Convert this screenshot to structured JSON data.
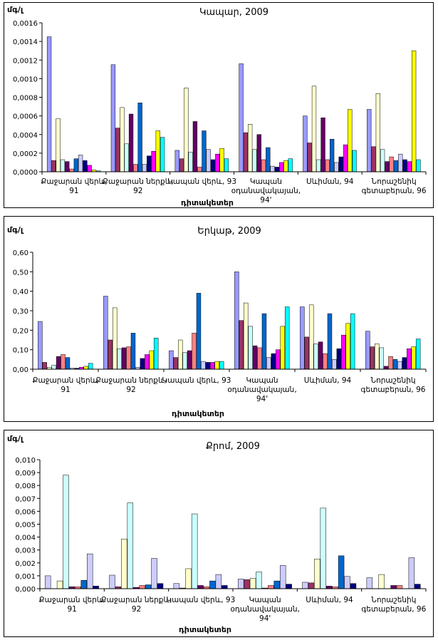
{
  "chart_data": [
    {
      "type": "bar",
      "title": "Կապար, 2009",
      "ylabel": "մգ/լ",
      "xlabel": "դիտակետեր",
      "ylim": [
        0,
        0.0016
      ],
      "y_ticks": [
        "0,0000",
        "0,0002",
        "0,0004",
        "0,0006",
        "0,0008",
        "0,0010",
        "0,0012",
        "0,0014",
        "0,0016"
      ],
      "grid": false,
      "legend": "none",
      "categories": [
        [
          "Քաջարան վերև,",
          "91"
        ],
        [
          "Քաջարան ներքև,",
          "92"
        ],
        [
          "Կապան վերև, 93",
          ""
        ],
        [
          "Կապան",
          "օդանավակայան,",
          "94'"
        ],
        [
          "Սևիման, 94",
          ""
        ],
        [
          "Նորաշենիկ",
          "գետաբերան, 96"
        ]
      ],
      "series_colors": [
        "#9999ff",
        "#993366",
        "#ffffcc",
        "#ccffff",
        "#660066",
        "#ff8080",
        "#0066cc",
        "#ccccff",
        "#000080",
        "#ff00ff",
        "#ffff00",
        "#00ffff"
      ],
      "series": [
        {
          "values": [
            0.00145,
            0.00115,
            0.00023,
            0.00116,
            0.0006,
            0.00067
          ]
        },
        {
          "values": [
            0.00012,
            0.00047,
            0.00014,
            0.00042,
            0.00031,
            0.00027
          ]
        },
        {
          "values": [
            0.00057,
            0.00069,
            0.0009,
            0.00051,
            0.00092,
            0.00084
          ]
        },
        {
          "values": [
            0.00013,
            0.0003,
            0.00021,
            0.00024,
            0.00013,
            0.00024
          ]
        },
        {
          "values": [
            0.00011,
            0.00062,
            0.00054,
            0.0004,
            0.00058,
            0.00011
          ]
        },
        {
          "values": [
            3e-05,
            8e-05,
            5e-05,
            0.00013,
            0.00013,
            0.00016
          ]
        },
        {
          "values": [
            0.00014,
            0.00074,
            0.00044,
            0.00026,
            0.00035,
            0.00012
          ]
        },
        {
          "values": [
            0.00018,
            8e-05,
            0.00024,
            6e-05,
            0.0001,
            0.00019
          ]
        },
        {
          "values": [
            0.00012,
            0.00017,
            0.00013,
            5e-05,
            0.00016,
            0.00013
          ]
        },
        {
          "values": [
            7e-05,
            0.00022,
            0.00019,
            0.0001,
            0.00029,
            0.00011
          ]
        },
        {
          "values": [
            2e-05,
            0.00044,
            0.00025,
            0.00012,
            0.00067,
            0.0013
          ]
        },
        {
          "values": [
            1e-05,
            0.00037,
            0.00014,
            0.00014,
            0.00023,
            0.00013
          ]
        }
      ]
    },
    {
      "type": "bar",
      "title": "Երկաթ, 2009",
      "ylabel": "մգ/լ",
      "xlabel": "դիտակետեր",
      "ylim": [
        0,
        0.6
      ],
      "y_ticks": [
        "0,00",
        "0,10",
        "0,20",
        "0,30",
        "0,40",
        "0,50",
        "0,60"
      ],
      "grid": false,
      "legend": "none",
      "categories": [
        [
          "Քաջարան վերև,",
          "91"
        ],
        [
          "Քաջարան ներքև,",
          "92"
        ],
        [
          "Կապան վերև, 93",
          ""
        ],
        [
          "Կապան",
          "օդանավակայան,",
          "94'"
        ],
        [
          "Սևիման, 94",
          ""
        ],
        [
          "Նորաշենիկ",
          "գետաբերան, 96"
        ]
      ],
      "series_colors": [
        "#9999ff",
        "#993366",
        "#ffffcc",
        "#ccffff",
        "#660066",
        "#ff8080",
        "#0066cc",
        "#ccccff",
        "#000080",
        "#ff00ff",
        "#ffff00",
        "#00ffff"
      ],
      "series": [
        {
          "values": [
            0.245,
            0.375,
            0.095,
            0.5,
            0.32,
            0.195
          ]
        },
        {
          "values": [
            0.035,
            0.15,
            0.06,
            0.25,
            0.165,
            0.115
          ]
        },
        {
          "values": [
            0.01,
            0.315,
            0.15,
            0.34,
            0.33,
            0.13
          ]
        },
        {
          "values": [
            0.02,
            0.105,
            0.085,
            0.22,
            0.13,
            0.11
          ]
        },
        {
          "values": [
            0.065,
            0.11,
            0.095,
            0.12,
            0.14,
            0.015
          ]
        },
        {
          "values": [
            0.075,
            0.115,
            0.185,
            0.11,
            0.08,
            0.065
          ]
        },
        {
          "values": [
            0.06,
            0.185,
            0.39,
            0.285,
            0.285,
            0.05
          ]
        },
        {
          "values": [
            0.005,
            0.01,
            0.04,
            0.06,
            0.05,
            0.04
          ]
        },
        {
          "values": [
            0.005,
            0.055,
            0.035,
            0.08,
            0.105,
            0.06
          ]
        },
        {
          "values": [
            0.01,
            0.075,
            0.035,
            0.1,
            0.175,
            0.105
          ]
        },
        {
          "values": [
            0.015,
            0.095,
            0.04,
            0.22,
            0.235,
            0.115
          ]
        },
        {
          "values": [
            0.03,
            0.16,
            0.04,
            0.32,
            0.285,
            0.155
          ]
        }
      ]
    },
    {
      "type": "bar",
      "title": "Քրոմ, 2009",
      "ylabel": "մգ/լ",
      "xlabel": "դիտակետեր",
      "ylim": [
        0,
        0.01
      ],
      "y_ticks": [
        "0,000",
        "0,001",
        "0,002",
        "0,003",
        "0,004",
        "0,005",
        "0,006",
        "0,007",
        "0,008",
        "0,009",
        "0,010"
      ],
      "grid": false,
      "legend": "none",
      "categories": [
        [
          "Քաջարան վերև,",
          "91"
        ],
        [
          "Քաջարան ներքև,",
          "92"
        ],
        [
          "Կապան վերև, 93",
          ""
        ],
        [
          "Կապան",
          "օդանավակայան,",
          "94'"
        ],
        [
          "Սևիման, 94",
          ""
        ],
        [
          "Նորաշենիկ",
          "գետաբերան, 96"
        ]
      ],
      "series_colors": [
        "#ccccff",
        "#993366",
        "#ffffcc",
        "#ccffff",
        "#660066",
        "#ff8080",
        "#0066cc",
        "#ccccff",
        "#000080"
      ],
      "series": [
        {
          "values": [
            0.001,
            0.00105,
            0.0004,
            0.00075,
            0.0005,
            0.00085
          ]
        },
        {
          "values": [
            0.0,
            0.00015,
            5e-05,
            0.0007,
            0.00045,
            0.0
          ]
        },
        {
          "values": [
            0.0006,
            0.00385,
            0.00155,
            0.0008,
            0.0023,
            0.0011
          ]
        },
        {
          "values": [
            0.0088,
            0.00665,
            0.0058,
            0.0013,
            0.00625,
            0.0
          ]
        },
        {
          "values": [
            0.00015,
            0.0001,
            0.00025,
            5e-05,
            0.0002,
            0.00025
          ]
        },
        {
          "values": [
            0.00015,
            0.00025,
            0.00015,
            0.00025,
            0.00015,
            0.00025
          ]
        },
        {
          "values": [
            0.00065,
            0.0003,
            0.0006,
            0.0006,
            0.00255,
            0.0
          ]
        },
        {
          "values": [
            0.0027,
            0.00235,
            0.0011,
            0.0018,
            0.00095,
            0.0024
          ]
        },
        {
          "values": [
            0.0002,
            0.0004,
            0.00025,
            0.00035,
            0.0004,
            0.00035
          ]
        }
      ]
    }
  ]
}
